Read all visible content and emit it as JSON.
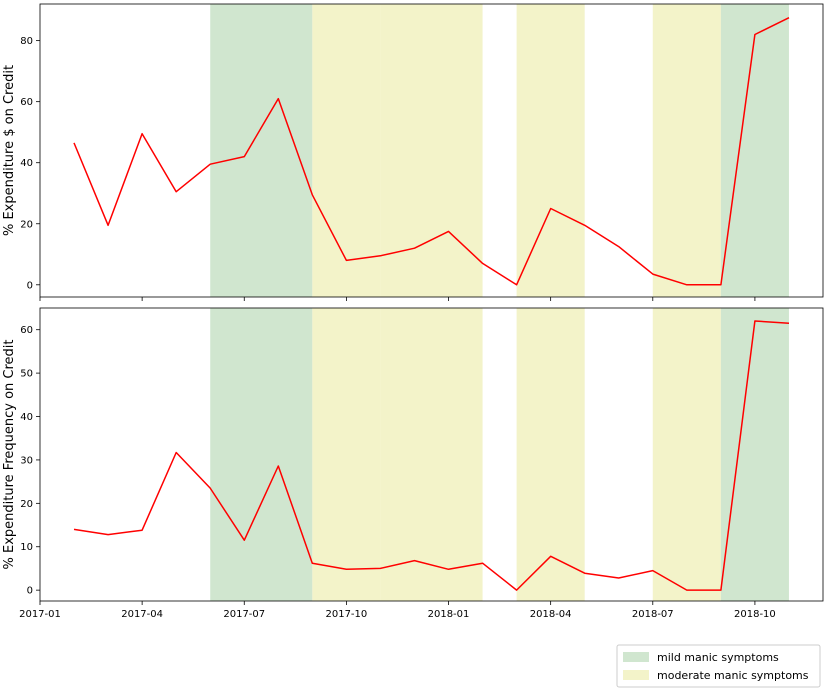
{
  "chart_data": {
    "type": "line",
    "shared_x_ticks": [
      "2017-01",
      "2017-04",
      "2017-07",
      "2017-10",
      "2018-01",
      "2018-04",
      "2018-07",
      "2018-10"
    ],
    "x_range": [
      "2017-01",
      "2018-12"
    ],
    "line_color": "#ff0000",
    "grid": false,
    "shaded_periods": [
      {
        "start": "2017-06",
        "end": "2017-09",
        "category": "mild"
      },
      {
        "start": "2017-09",
        "end": "2017-11",
        "category": "moderate"
      },
      {
        "start": "2017-11",
        "end": "2018-02",
        "category": "moderate"
      },
      {
        "start": "2018-03",
        "end": "2018-05",
        "category": "moderate"
      },
      {
        "start": "2018-07",
        "end": "2018-09",
        "category": "moderate"
      },
      {
        "start": "2018-09",
        "end": "2018-11",
        "category": "mild"
      }
    ],
    "legend": {
      "placement": "bottom-right",
      "entries": [
        {
          "key": "mild",
          "label": "mild manic symptoms",
          "color": "#d0e6cf"
        },
        {
          "key": "moderate",
          "label": "moderate manic symptoms",
          "color": "#f3f3c9"
        }
      ]
    },
    "subplots": [
      {
        "ylabel": "% Expenditure $ on Credit",
        "ylim": [
          -4,
          92
        ],
        "yticks": [
          0,
          20,
          40,
          60,
          80
        ],
        "x": [
          "2017-02",
          "2017-03",
          "2017-04",
          "2017-05",
          "2017-06",
          "2017-07",
          "2017-08",
          "2017-09",
          "2017-10",
          "2017-11",
          "2017-12",
          "2018-01",
          "2018-02",
          "2018-03",
          "2018-04",
          "2018-05",
          "2018-06",
          "2018-07",
          "2018-08",
          "2018-09",
          "2018-10",
          "2018-11"
        ],
        "values": [
          46.5,
          19.5,
          49.5,
          30.5,
          39.5,
          42,
          61,
          29.5,
          8,
          9.5,
          12,
          17.5,
          7,
          0,
          25,
          19.5,
          12.5,
          3.5,
          0,
          0,
          82,
          87.5
        ]
      },
      {
        "ylabel": "% Expenditure Frequency on Credit",
        "ylim": [
          -2.5,
          65
        ],
        "yticks": [
          0,
          10,
          20,
          30,
          40,
          50,
          60
        ],
        "x": [
          "2017-02",
          "2017-03",
          "2017-04",
          "2017-05",
          "2017-06",
          "2017-07",
          "2017-08",
          "2017-09",
          "2017-10",
          "2017-11",
          "2017-12",
          "2018-01",
          "2018-02",
          "2018-03",
          "2018-04",
          "2018-05",
          "2018-06",
          "2018-07",
          "2018-08",
          "2018-09",
          "2018-10",
          "2018-11"
        ],
        "values": [
          14,
          12.8,
          13.8,
          31.7,
          23.5,
          11.5,
          28.6,
          6.2,
          4.8,
          5,
          6.8,
          4.8,
          6.2,
          0,
          7.8,
          3.9,
          2.8,
          4.5,
          0,
          0,
          62,
          61.5
        ]
      }
    ]
  }
}
